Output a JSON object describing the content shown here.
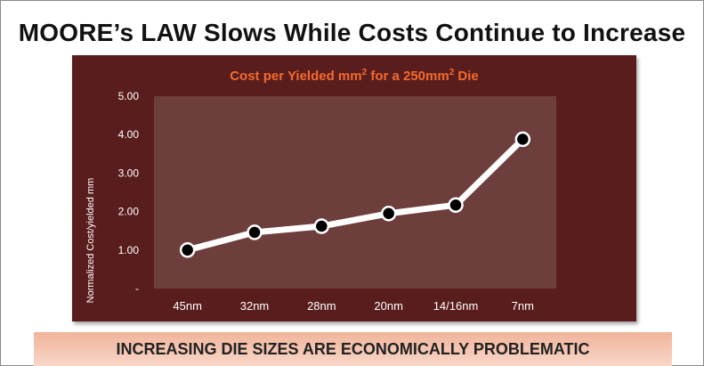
{
  "slide": {
    "title": "MOORE’s LAW Slows While Costs Continue to Increase",
    "banner": "INCREASING DIE SIZES ARE ECONOMICALLY PROBLEMATIC"
  },
  "colors": {
    "panel": "#5a1d1d",
    "plot_area": "#6e3e3c",
    "title_accent": "#f26a2e",
    "line": "#ffffff",
    "marker": "#000000"
  },
  "chart_data": {
    "type": "line",
    "title_parts": [
      "Cost per Yielded mm",
      "2",
      " for a 250mm",
      "2",
      " Die"
    ],
    "ylabel": "Normalized Cost/yielded mm",
    "xlabel": "",
    "categories": [
      "45nm",
      "32nm",
      "28nm",
      "20nm",
      "14/16nm",
      "7nm"
    ],
    "series": [
      {
        "values": [
          1.0,
          1.46,
          1.62,
          1.95,
          2.17,
          3.88
        ]
      }
    ],
    "ylim": [
      0,
      5
    ],
    "yticks": [
      0,
      1,
      2,
      3,
      4,
      5
    ],
    "ytick_labels": [
      "-",
      "1.00",
      "2.00",
      "3.00",
      "4.00",
      "5.00"
    ],
    "grid": false,
    "legend": "none"
  }
}
